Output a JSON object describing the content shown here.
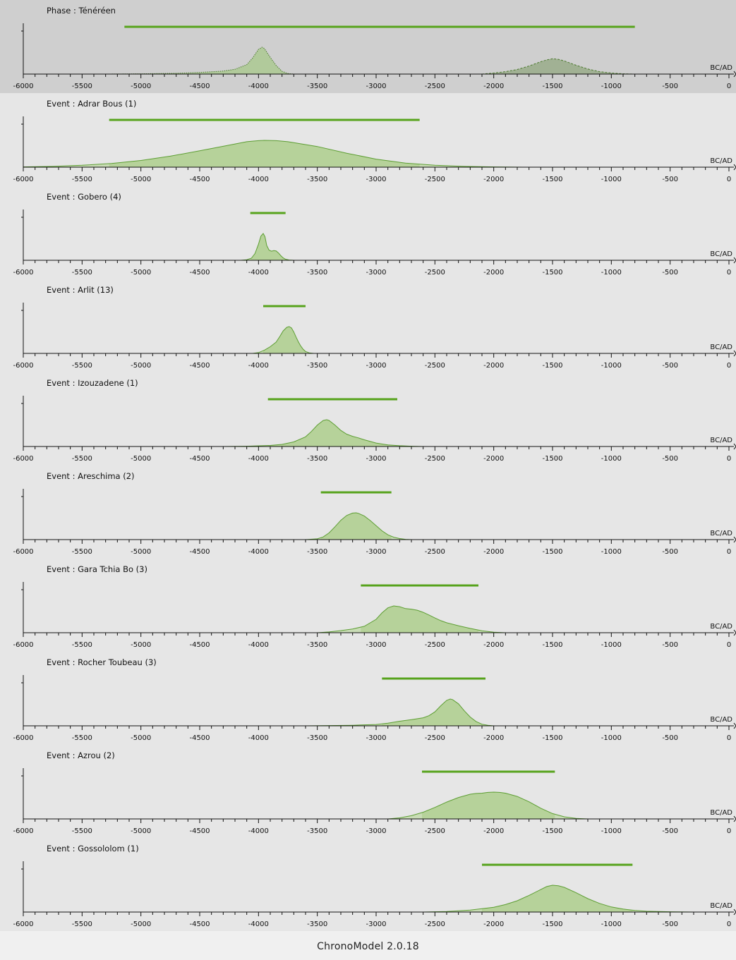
{
  "footer": {
    "label": "ChronoModel 2.0.18"
  },
  "colors": {
    "hpd_bar": "#57a31c",
    "curve_stroke": "#5d9e33",
    "fill_light": "#c9dcb6",
    "fill_hpd": "#b6d29a",
    "phase_fill": "#acc992",
    "phase_fill_end": "#99ab8a",
    "panel_bg": "#e6e6e6",
    "phase_bg": "#cfcfcf"
  },
  "chart_data": [
    {
      "type": "area",
      "title": "Phase : Ténéréen",
      "xlabel": "BC/AD",
      "xlim": [
        -6000,
        0
      ],
      "xticks": [
        "-6000",
        "-5500",
        "-5000",
        "-4500",
        "-4000",
        "-3500",
        "-3000",
        "-2500",
        "-2000",
        "-1500",
        "-1000",
        "-500",
        "0"
      ],
      "hpd": [
        -5140,
        -800
      ],
      "series": [
        {
          "x": [
            -5300,
            -5000,
            -4700,
            -4500,
            -4300,
            -4200,
            -4100,
            -4050,
            -4000,
            -3970,
            -3950,
            -3900,
            -3850,
            -3800,
            -3750,
            -3700
          ],
          "y": [
            0.0,
            0.01,
            0.03,
            0.06,
            0.11,
            0.18,
            0.35,
            0.6,
            0.92,
            1.0,
            0.95,
            0.62,
            0.32,
            0.1,
            0.02,
            0.0
          ]
        },
        {
          "x": [
            -2100,
            -2000,
            -1900,
            -1800,
            -1700,
            -1600,
            -1550,
            -1500,
            -1450,
            -1400,
            -1300,
            -1200,
            -1100,
            -1000,
            -900,
            -800
          ],
          "y": [
            0.0,
            0.04,
            0.09,
            0.17,
            0.3,
            0.46,
            0.53,
            0.57,
            0.55,
            0.49,
            0.33,
            0.19,
            0.09,
            0.04,
            0.01,
            0.0
          ]
        }
      ]
    },
    {
      "type": "area",
      "title": "Event : Adrar Bous (1)",
      "xlabel": "BC/AD",
      "xlim": [
        -6000,
        0
      ],
      "xticks": [
        "-6000",
        "-5500",
        "-5000",
        "-4500",
        "-4000",
        "-3500",
        "-3000",
        "-2500",
        "-2000",
        "-1500",
        "-1000",
        "-500",
        "0"
      ],
      "hpd": [
        -5270,
        -2630
      ],
      "x": [
        -6000,
        -5750,
        -5500,
        -5250,
        -5000,
        -4750,
        -4500,
        -4250,
        -4100,
        -4000,
        -3950,
        -3850,
        -3750,
        -3500,
        -3250,
        -3000,
        -2750,
        -2500,
        -2250,
        -2000,
        -1750
      ],
      "y": [
        0.01,
        0.03,
        0.07,
        0.14,
        0.25,
        0.41,
        0.61,
        0.82,
        0.95,
        0.99,
        1.0,
        0.99,
        0.95,
        0.77,
        0.52,
        0.3,
        0.15,
        0.07,
        0.03,
        0.01,
        0.0
      ]
    },
    {
      "type": "area",
      "title": "Event : Gobero (4)",
      "xlabel": "BC/AD",
      "xlim": [
        -6000,
        0
      ],
      "xticks": [
        "-6000",
        "-5500",
        "-5000",
        "-4500",
        "-4000",
        "-3500",
        "-3000",
        "-2500",
        "-2000",
        "-1500",
        "-1000",
        "-500",
        "0"
      ],
      "hpd": [
        -4070,
        -3770
      ],
      "x": [
        -4150,
        -4100,
        -4060,
        -4030,
        -4000,
        -3980,
        -3960,
        -3945,
        -3930,
        -3910,
        -3890,
        -3870,
        -3850,
        -3830,
        -3810,
        -3790,
        -3770,
        -3740,
        -3700
      ],
      "y": [
        0.0,
        0.02,
        0.08,
        0.25,
        0.6,
        0.9,
        1.0,
        0.88,
        0.55,
        0.38,
        0.34,
        0.36,
        0.35,
        0.27,
        0.17,
        0.09,
        0.04,
        0.01,
        0.0
      ]
    },
    {
      "type": "area",
      "title": "Event : Arlit (13)",
      "xlabel": "BC/AD",
      "xlim": [
        -6000,
        0
      ],
      "xticks": [
        "-6000",
        "-5500",
        "-5000",
        "-4500",
        "-4000",
        "-3500",
        "-3000",
        "-2500",
        "-2000",
        "-1500",
        "-1000",
        "-500",
        "0"
      ],
      "hpd": [
        -3960,
        -3600
      ],
      "x": [
        -4050,
        -4000,
        -3950,
        -3900,
        -3850,
        -3820,
        -3790,
        -3760,
        -3740,
        -3720,
        -3700,
        -3680,
        -3660,
        -3640,
        -3620,
        -3600,
        -3570,
        -3530
      ],
      "y": [
        0.0,
        0.03,
        0.12,
        0.25,
        0.42,
        0.62,
        0.84,
        0.97,
        1.0,
        0.95,
        0.8,
        0.6,
        0.42,
        0.27,
        0.15,
        0.07,
        0.02,
        0.0
      ]
    },
    {
      "type": "area",
      "title": "Event : Izouzadene (1)",
      "xlabel": "BC/AD",
      "xlim": [
        -6000,
        0
      ],
      "xticks": [
        "-6000",
        "-5500",
        "-5000",
        "-4500",
        "-4000",
        "-3500",
        "-3000",
        "-2500",
        "-2000",
        "-1500",
        "-1000",
        "-500",
        "0"
      ],
      "hpd": [
        -3920,
        -2820
      ],
      "x": [
        -4300,
        -4100,
        -3900,
        -3800,
        -3700,
        -3600,
        -3550,
        -3500,
        -3450,
        -3420,
        -3400,
        -3350,
        -3300,
        -3250,
        -3200,
        -3150,
        -3100,
        -3000,
        -2900,
        -2800,
        -2700,
        -2600
      ],
      "y": [
        0.0,
        0.01,
        0.04,
        0.08,
        0.17,
        0.36,
        0.56,
        0.8,
        0.97,
        1.0,
        0.97,
        0.8,
        0.6,
        0.46,
        0.38,
        0.32,
        0.25,
        0.13,
        0.06,
        0.03,
        0.01,
        0.0
      ]
    },
    {
      "type": "area",
      "title": "Event : Areschima (2)",
      "xlabel": "BC/AD",
      "xlim": [
        -6000,
        0
      ],
      "xticks": [
        "-6000",
        "-5500",
        "-5000",
        "-4500",
        "-4000",
        "-3500",
        "-3000",
        "-2500",
        "-2000",
        "-1500",
        "-1000",
        "-500",
        "0"
      ],
      "hpd": [
        -3470,
        -2870
      ],
      "x": [
        -3600,
        -3500,
        -3450,
        -3400,
        -3350,
        -3300,
        -3250,
        -3200,
        -3170,
        -3150,
        -3100,
        -3050,
        -3000,
        -2950,
        -2900,
        -2850,
        -2800,
        -2750,
        -2700
      ],
      "y": [
        0.0,
        0.03,
        0.1,
        0.25,
        0.48,
        0.72,
        0.9,
        0.99,
        1.0,
        0.98,
        0.88,
        0.71,
        0.52,
        0.33,
        0.18,
        0.09,
        0.04,
        0.01,
        0.0
      ]
    },
    {
      "type": "area",
      "title": "Event : Gara Tchia Bo (3)",
      "xlabel": "BC/AD",
      "xlim": [
        -6000,
        0
      ],
      "xticks": [
        "-6000",
        "-5500",
        "-5000",
        "-4500",
        "-4000",
        "-3500",
        "-3000",
        "-2500",
        "-2000",
        "-1500",
        "-1000",
        "-500",
        "0"
      ],
      "hpd": [
        -3130,
        -2130
      ],
      "x": [
        -3500,
        -3400,
        -3300,
        -3200,
        -3100,
        -3000,
        -2950,
        -2900,
        -2850,
        -2800,
        -2750,
        -2700,
        -2650,
        -2600,
        -2550,
        -2500,
        -2450,
        -2400,
        -2300,
        -2200,
        -2100,
        -2000,
        -1900
      ],
      "y": [
        0.0,
        0.03,
        0.08,
        0.14,
        0.24,
        0.5,
        0.74,
        0.93,
        1.0,
        0.97,
        0.9,
        0.88,
        0.84,
        0.76,
        0.66,
        0.55,
        0.45,
        0.37,
        0.26,
        0.16,
        0.07,
        0.02,
        0.0
      ]
    },
    {
      "type": "area",
      "title": "Event : Rocher Toubeau (3)",
      "xlabel": "BC/AD",
      "xlim": [
        -6000,
        0
      ],
      "xticks": [
        "-6000",
        "-5500",
        "-5000",
        "-4500",
        "-4000",
        "-3500",
        "-3000",
        "-2500",
        "-2000",
        "-1500",
        "-1000",
        "-500",
        "0"
      ],
      "hpd": [
        -2950,
        -2070
      ],
      "x": [
        -3600,
        -3400,
        -3200,
        -3000,
        -2900,
        -2800,
        -2700,
        -2600,
        -2550,
        -2500,
        -2450,
        -2400,
        -2370,
        -2350,
        -2300,
        -2250,
        -2200,
        -2150,
        -2100,
        -2050,
        -2000
      ],
      "y": [
        0.0,
        0.01,
        0.02,
        0.05,
        0.1,
        0.17,
        0.23,
        0.3,
        0.38,
        0.52,
        0.75,
        0.95,
        1.0,
        0.98,
        0.82,
        0.56,
        0.33,
        0.16,
        0.06,
        0.02,
        0.0
      ]
    },
    {
      "type": "area",
      "title": "Event : Azrou (2)",
      "xlabel": "BC/AD",
      "xlim": [
        -6000,
        0
      ],
      "xticks": [
        "-6000",
        "-5500",
        "-5000",
        "-4500",
        "-4000",
        "-3500",
        "-3000",
        "-2500",
        "-2000",
        "-1500",
        "-1000",
        "-500",
        "0"
      ],
      "hpd": [
        -2610,
        -1480
      ],
      "x": [
        -2900,
        -2800,
        -2700,
        -2600,
        -2500,
        -2400,
        -2300,
        -2200,
        -2150,
        -2100,
        -2050,
        -2000,
        -1950,
        -1900,
        -1800,
        -1700,
        -1600,
        -1500,
        -1400,
        -1300,
        -1200
      ],
      "y": [
        0.0,
        0.04,
        0.12,
        0.25,
        0.43,
        0.63,
        0.8,
        0.92,
        0.95,
        0.96,
        0.99,
        1.0,
        0.99,
        0.96,
        0.84,
        0.64,
        0.4,
        0.2,
        0.08,
        0.02,
        0.0
      ]
    },
    {
      "type": "area",
      "title": "Event : Gossololom (1)",
      "xlabel": "BC/AD",
      "xlim": [
        -6000,
        0
      ],
      "xticks": [
        "-6000",
        "-5500",
        "-5000",
        "-4500",
        "-4000",
        "-3500",
        "-3000",
        "-2500",
        "-2000",
        "-1500",
        "-1000",
        "-500",
        "0"
      ],
      "hpd": [
        -2100,
        -820
      ],
      "x": [
        -2600,
        -2400,
        -2200,
        -2000,
        -1900,
        -1800,
        -1700,
        -1600,
        -1550,
        -1500,
        -1450,
        -1400,
        -1300,
        -1200,
        -1100,
        -1000,
        -900,
        -800,
        -700,
        -600,
        -500,
        -300
      ],
      "y": [
        0.0,
        0.02,
        0.07,
        0.18,
        0.28,
        0.42,
        0.62,
        0.84,
        0.95,
        1.0,
        0.98,
        0.92,
        0.72,
        0.5,
        0.32,
        0.19,
        0.11,
        0.06,
        0.03,
        0.02,
        0.01,
        0.0
      ]
    }
  ]
}
